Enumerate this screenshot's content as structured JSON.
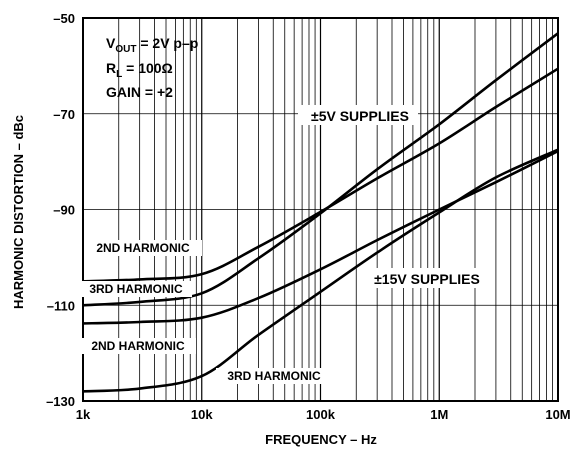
{
  "chart_data": {
    "type": "line",
    "xscale": "log",
    "xlim": [
      1000,
      10000000
    ],
    "ylim": [
      -130,
      -50
    ],
    "grid": true,
    "xlabel": "FREQUENCY – Hz",
    "ylabel": "HARMONIC DISTORTION – dBc",
    "x_ticks": [
      {
        "value": 1000,
        "label": "1k"
      },
      {
        "value": 10000,
        "label": "10k"
      },
      {
        "value": 100000,
        "label": "100k"
      },
      {
        "value": 1000000,
        "label": "1M"
      },
      {
        "value": 10000000,
        "label": "10M"
      }
    ],
    "y_ticks": [
      {
        "value": -50,
        "label": "–50"
      },
      {
        "value": -70,
        "label": "–70"
      },
      {
        "value": -90,
        "label": "–90"
      },
      {
        "value": -110,
        "label": "–110"
      },
      {
        "value": -130,
        "label": "–130"
      }
    ],
    "conditions": {
      "vout_prefix": "V",
      "vout_sub": "OUT",
      "vout_value": " = 2V p–p",
      "rl_prefix": "R",
      "rl_sub": "L",
      "rl_value": " = 100Ω",
      "gain": "GAIN = +2"
    },
    "annotations": {
      "supplies_5v": "±5V SUPPLIES",
      "supplies_15v": "±15V SUPPLIES",
      "label_2nd_upper": "2ND HARMONIC",
      "label_3rd_upper": "3RD HARMONIC",
      "label_2nd_lower": "2ND HARMONIC",
      "label_3rd_lower": "3RD HARMONIC"
    },
    "series": [
      {
        "id": "5v-2nd",
        "x": [
          1000,
          3000,
          10000,
          30000,
          100000,
          300000,
          1000000,
          3000000,
          10000000
        ],
        "y": [
          -105,
          -104.6,
          -103.5,
          -97.8,
          -90.5,
          -83.5,
          -76.2,
          -68.6,
          -60.6
        ]
      },
      {
        "id": "5v-3rd",
        "x": [
          1000,
          3000,
          10000,
          30000,
          100000,
          300000,
          1000000,
          3000000,
          10000000
        ],
        "y": [
          -110,
          -109.3,
          -107.5,
          -100.2,
          -90.8,
          -81.6,
          -72.2,
          -63.0,
          -53.2
        ]
      },
      {
        "id": "15v-2nd",
        "x": [
          1000,
          3000,
          10000,
          30000,
          100000,
          300000,
          1000000,
          3000000,
          10000000
        ],
        "y": [
          -113.8,
          -113.5,
          -112.6,
          -108.5,
          -102.5,
          -96.4,
          -90.0,
          -84.3,
          -77.8
        ]
      },
      {
        "id": "15v-3rd",
        "x": [
          1000,
          3000,
          10000,
          30000,
          100000,
          300000,
          1000000,
          3000000,
          10000000
        ],
        "y": [
          -128,
          -127.4,
          -124.8,
          -116.2,
          -107.2,
          -99.0,
          -90.6,
          -83.3,
          -77.5
        ]
      }
    ]
  }
}
